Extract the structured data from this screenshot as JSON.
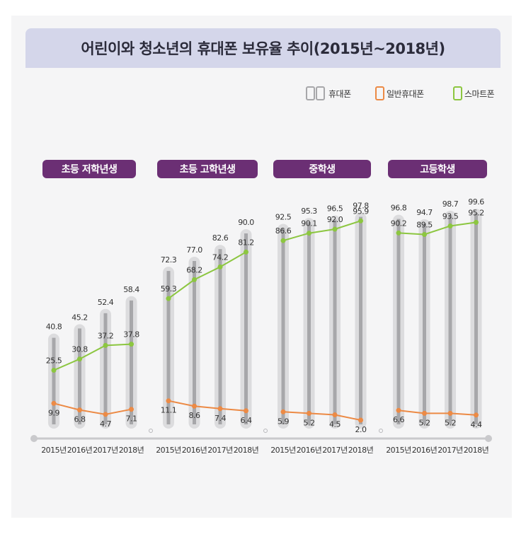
{
  "title": "어린이와 청소년의 휴대폰 보유율 추이(2015년~2018년)",
  "colors": {
    "total": "#a7a7aa",
    "feature": "#ec8a45",
    "smart": "#8cc640",
    "group_label": "#6b2f74"
  },
  "legend": [
    {
      "key": "total",
      "label": "휴대폰",
      "icon": "phone-pair-icon"
    },
    {
      "key": "feature",
      "label": "일반휴대폰",
      "icon": "feature-phone-icon"
    },
    {
      "key": "smart",
      "label": "스마트폰",
      "icon": "smartphone-icon"
    }
  ],
  "chart_data": {
    "type": "bar",
    "title": "어린이와 청소년의 휴대폰 보유율 추이(2015년~2018년)",
    "ylim": [
      0,
      100
    ],
    "grid": false,
    "legend_position": "top-right",
    "groups": [
      {
        "name": "초등 저학년생",
        "categories": [
          "2015년",
          "2016년",
          "2017년",
          "2018년"
        ],
        "series": [
          {
            "name": "휴대폰",
            "type": "bar",
            "values": [
              40.8,
              45.2,
              52.4,
              58.4
            ]
          },
          {
            "name": "스마트폰",
            "type": "line",
            "values": [
              25.5,
              30.8,
              37.2,
              37.8
            ]
          },
          {
            "name": "일반휴대폰",
            "type": "line",
            "values": [
              9.9,
              6.8,
              4.7,
              7.1
            ]
          }
        ]
      },
      {
        "name": "초등 고학년생",
        "categories": [
          "2015년",
          "2016년",
          "2017년",
          "2018년"
        ],
        "series": [
          {
            "name": "휴대폰",
            "type": "bar",
            "values": [
              72.3,
              77.0,
              82.6,
              90.0
            ]
          },
          {
            "name": "스마트폰",
            "type": "line",
            "values": [
              59.3,
              68.2,
              74.2,
              81.2
            ]
          },
          {
            "name": "일반휴대폰",
            "type": "line",
            "values": [
              11.1,
              8.6,
              7.4,
              6.4
            ]
          }
        ]
      },
      {
        "name": "중학생",
        "categories": [
          "2015년",
          "2016년",
          "2017년",
          "2018년"
        ],
        "series": [
          {
            "name": "휴대폰",
            "type": "bar",
            "values": [
              92.5,
              95.3,
              96.5,
              97.8
            ]
          },
          {
            "name": "스마트폰",
            "type": "line",
            "values": [
              86.6,
              90.1,
              92.0,
              95.9
            ]
          },
          {
            "name": "일반휴대폰",
            "type": "line",
            "values": [
              5.9,
              5.2,
              4.5,
              2.0
            ]
          }
        ]
      },
      {
        "name": "고등학생",
        "categories": [
          "2015년",
          "2016년",
          "2017년",
          "2018년"
        ],
        "series": [
          {
            "name": "휴대폰",
            "type": "bar",
            "values": [
              96.8,
              94.7,
              98.7,
              99.6
            ]
          },
          {
            "name": "스마트폰",
            "type": "line",
            "values": [
              90.2,
              89.5,
              93.5,
              95.2
            ]
          },
          {
            "name": "일반휴대폰",
            "type": "line",
            "values": [
              6.6,
              5.2,
              5.2,
              4.4
            ]
          }
        ]
      }
    ]
  }
}
